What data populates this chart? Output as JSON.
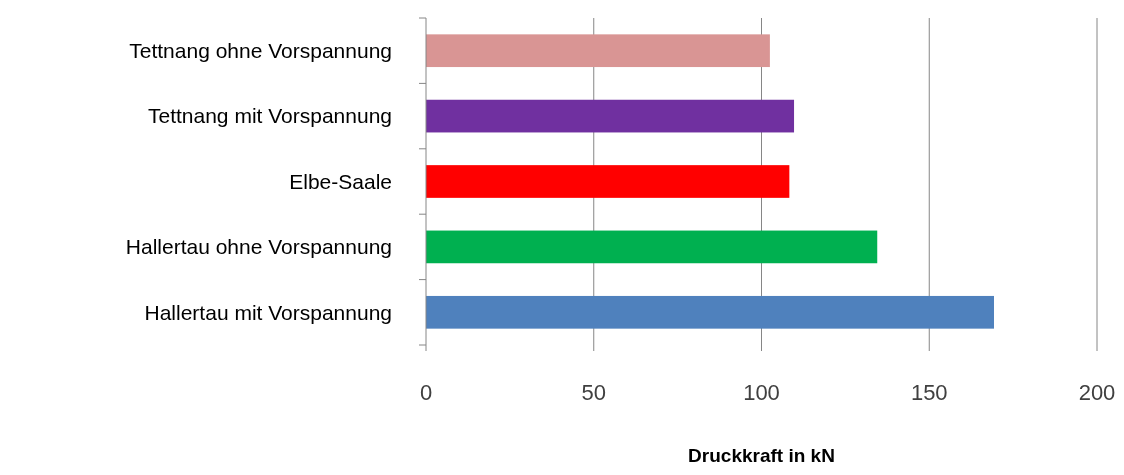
{
  "chart_data": {
    "type": "bar",
    "orientation": "horizontal",
    "xlabel": "Druckkraft in kN",
    "categories": [
      "Tettnang ohne Vorspannung",
      "Tettnang mit Vorspannung",
      "Elbe-Saale",
      "Hallertau ohne Vorspannung",
      "Hallertau mit Vorspannung"
    ],
    "values": [
      102.5,
      109.7,
      108.3,
      134.5,
      169.3
    ],
    "colors": [
      "#d99594",
      "#7030a0",
      "#ff0000",
      "#00b050",
      "#4f81bd"
    ],
    "xlim": [
      0,
      200
    ],
    "xticks": [
      0,
      50,
      100,
      150,
      200
    ],
    "grid": "x"
  }
}
